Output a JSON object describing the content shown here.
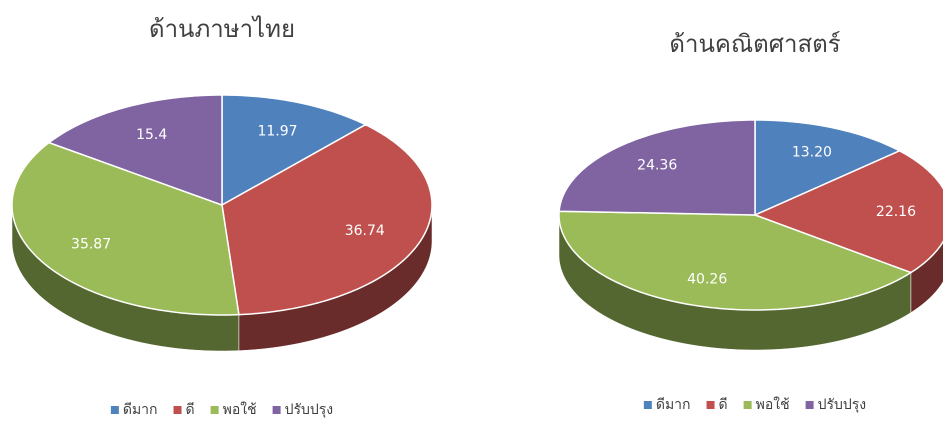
{
  "chart_data": [
    {
      "type": "pie",
      "three_d": true,
      "title": "ด้านภาษาไทย",
      "categories": [
        "ดีมาก",
        "ดี",
        "พอใช้",
        "ปรับปรุง"
      ],
      "values": [
        11.97,
        36.74,
        35.87,
        15.4
      ],
      "colors": [
        "#4f81bd",
        "#c0504d",
        "#9bbb59",
        "#8064a2"
      ],
      "legend": "bottom"
    },
    {
      "type": "pie",
      "three_d": true,
      "title": "ด้านคณิตศาสตร์",
      "categories": [
        "ดีมาก",
        "ดี",
        "พอใช้",
        "ปรับปรุง"
      ],
      "values": [
        13.2,
        22.16,
        40.26,
        24.36
      ],
      "value_labels": [
        "13.20",
        "22.16",
        "40.26",
        "24.36"
      ],
      "colors": [
        "#4f81bd",
        "#c0504d",
        "#9bbb59",
        "#8064a2"
      ],
      "legend": "bottom"
    }
  ]
}
